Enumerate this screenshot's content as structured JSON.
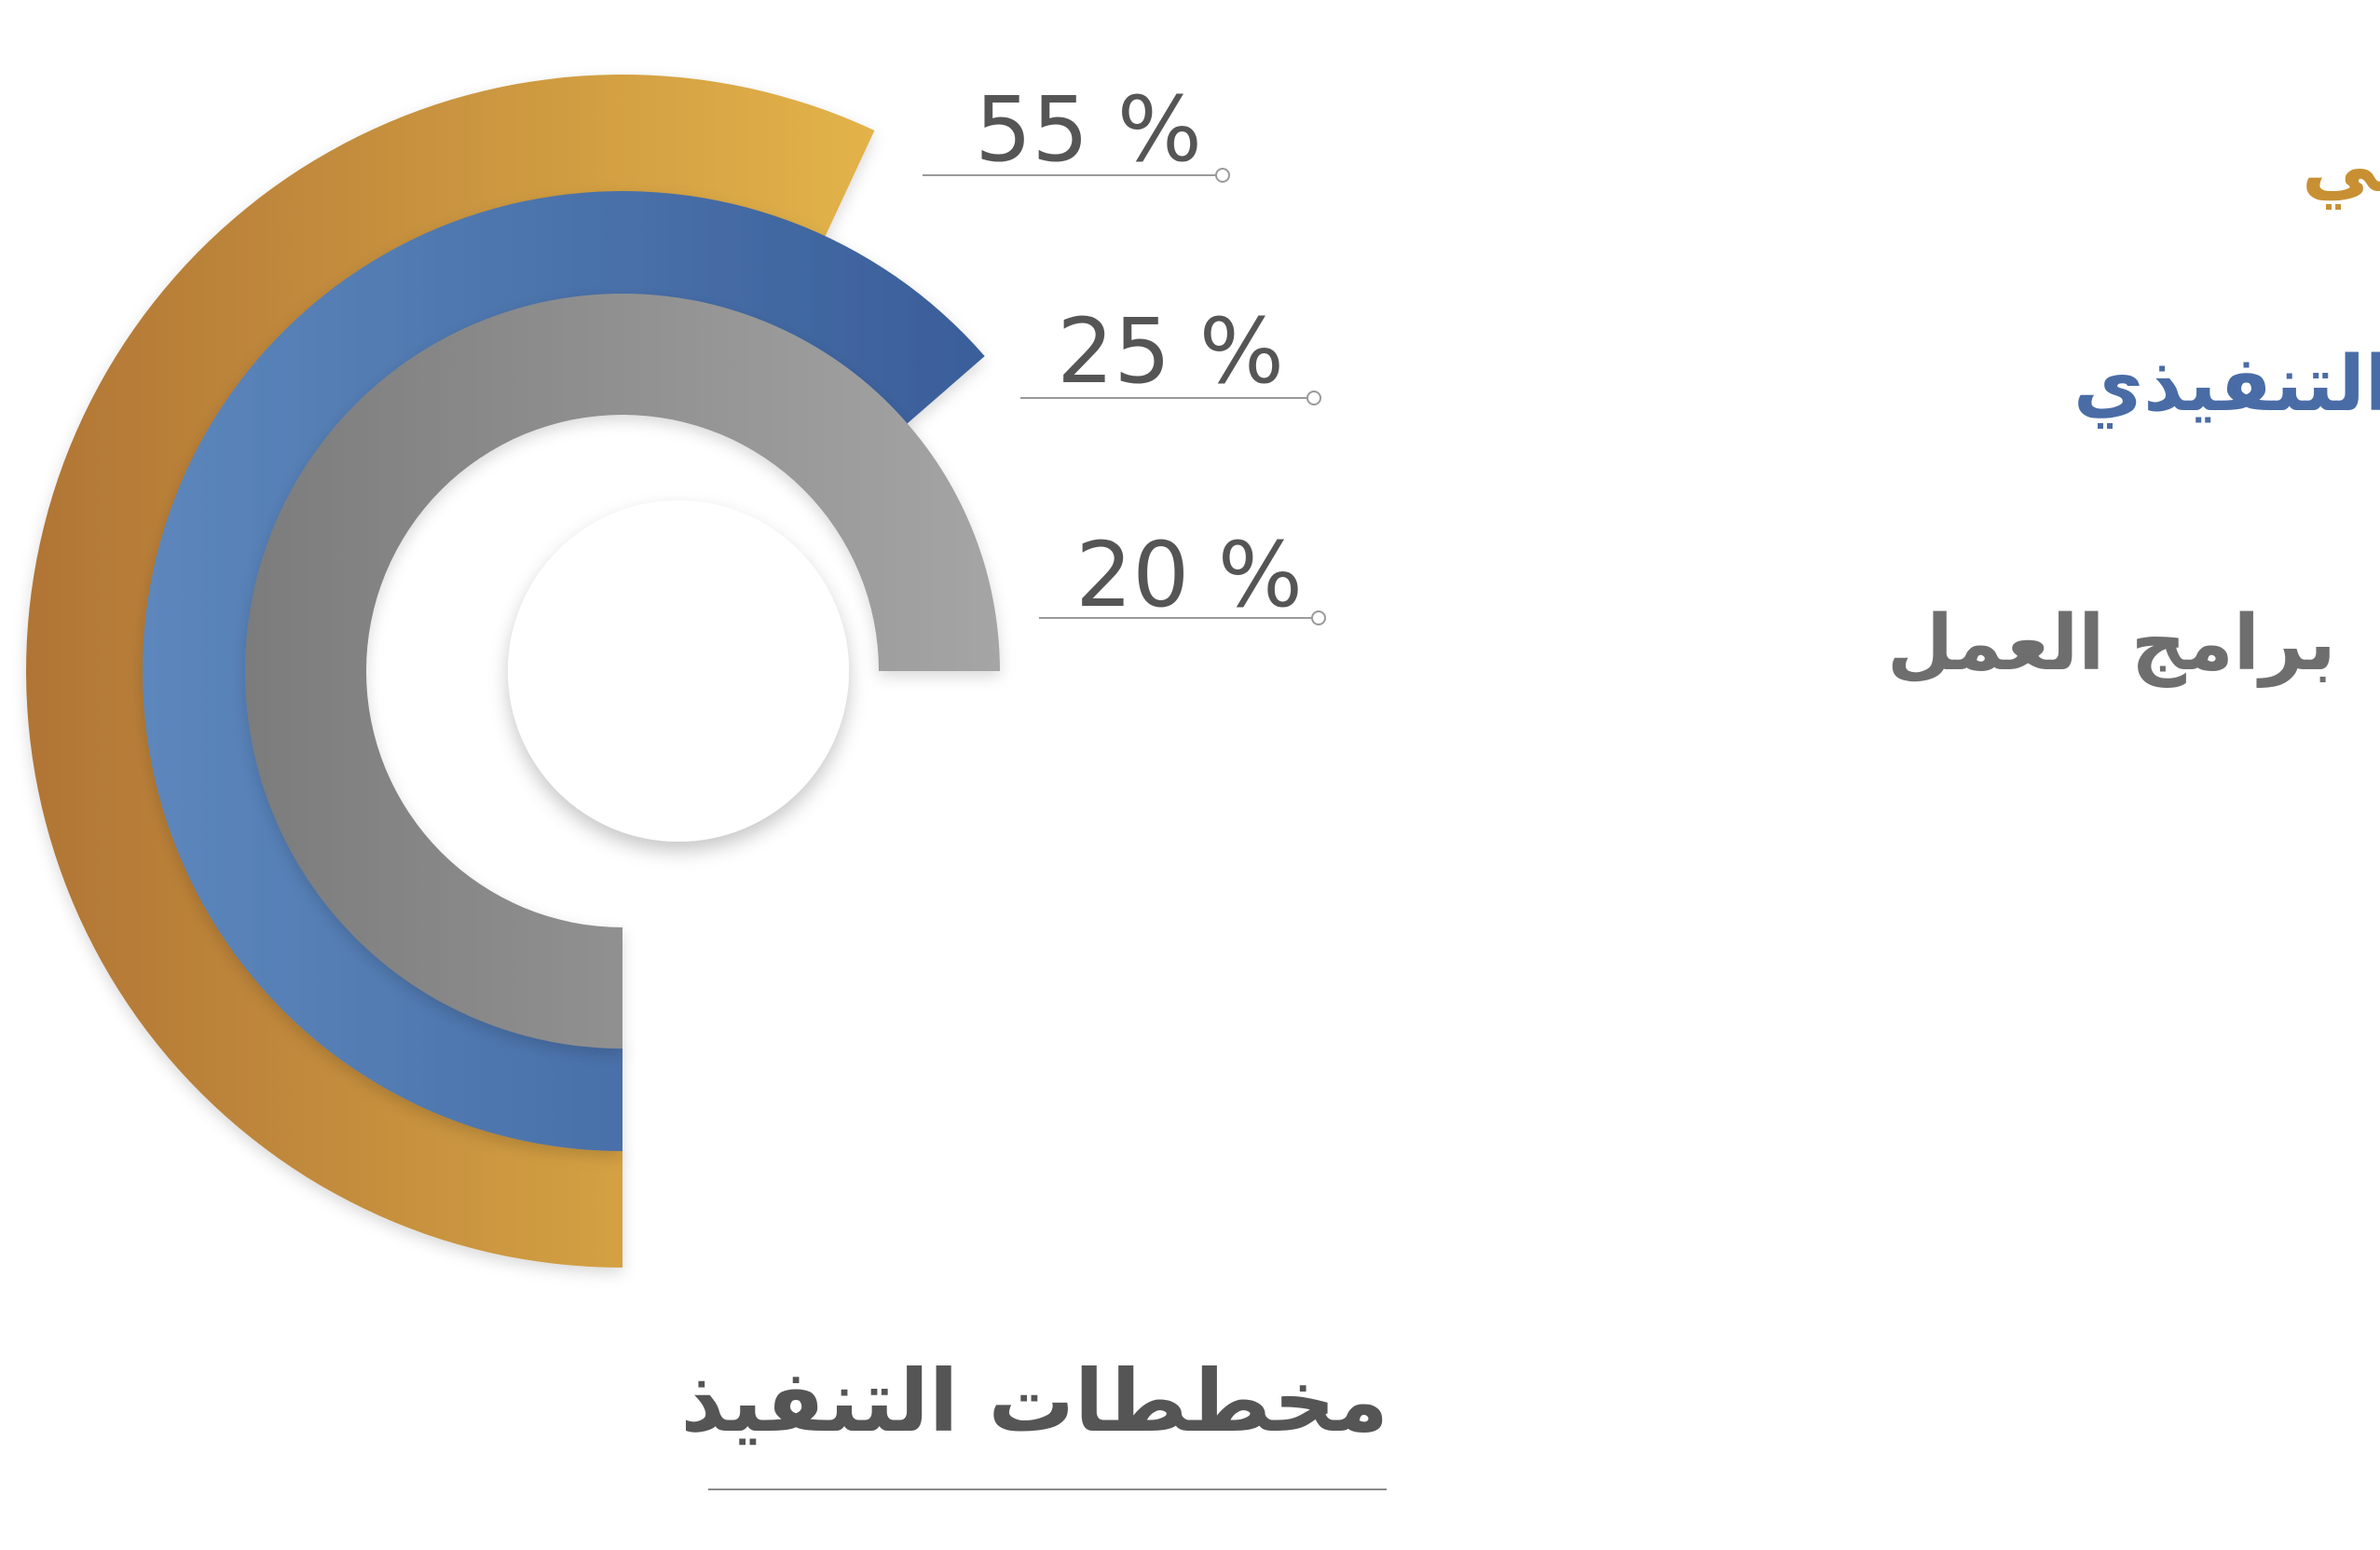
{
  "chart_data": {
    "type": "radial-bar",
    "title": "مخططات التنفيذ",
    "series": [
      {
        "name": "المخطط التنفيذي الترابي",
        "value": 55,
        "value_label": "55 %",
        "color_start": "#B07535",
        "color_end": "#E3B349",
        "label_color": "#C89033"
      },
      {
        "name": "المخطط التنفيذي",
        "value": 25,
        "value_label": "25 %",
        "color_start": "#5C87BC",
        "color_end": "#3A5E9A",
        "label_color": "#4A6CA6"
      },
      {
        "name": "برامج العمل",
        "value": 20,
        "value_label": "20 %",
        "color_start": "#7C7C7C",
        "color_end": "#A5A5A5",
        "label_color": "#6E6E6E"
      }
    ],
    "value_text_color": "#555555",
    "title_color": "#555555"
  }
}
